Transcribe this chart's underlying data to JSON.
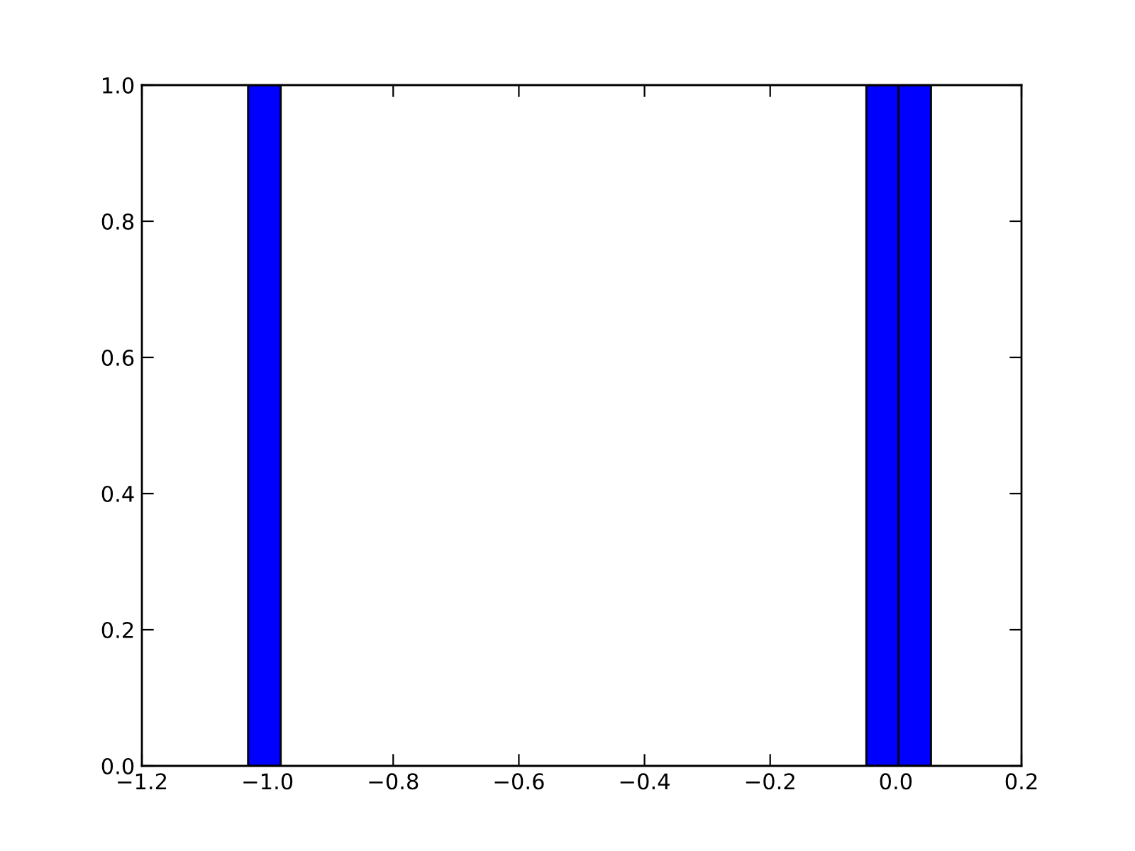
{
  "chart_data": {
    "type": "bar",
    "x": [
      -1.005,
      -0.021,
      0.03
    ],
    "values": [
      1.0,
      1.0,
      1.0
    ],
    "color": "#0000ff",
    "xlim": [
      -1.2,
      0.2
    ],
    "xticks": [
      {
        "value": -1.2,
        "label": "−1.2"
      },
      {
        "value": -1.0,
        "label": "−1.0"
      },
      {
        "value": -0.8,
        "label": "−0.8"
      },
      {
        "value": -0.6,
        "label": "−0.6"
      },
      {
        "value": -0.4,
        "label": "−0.4"
      },
      {
        "value": -0.2,
        "label": "−0.2"
      },
      {
        "value": 0,
        "label": "0.0"
      },
      0.2
    ],
    "ylim": [
      0.0,
      1.0
    ],
    "yticks": [
      {
        "value": 0,
        "label": "0.0"
      },
      0.2,
      0.4,
      0.6,
      0.8,
      {
        "value": 1,
        "label": "1.0"
      }
    ],
    "grid": false
  }
}
